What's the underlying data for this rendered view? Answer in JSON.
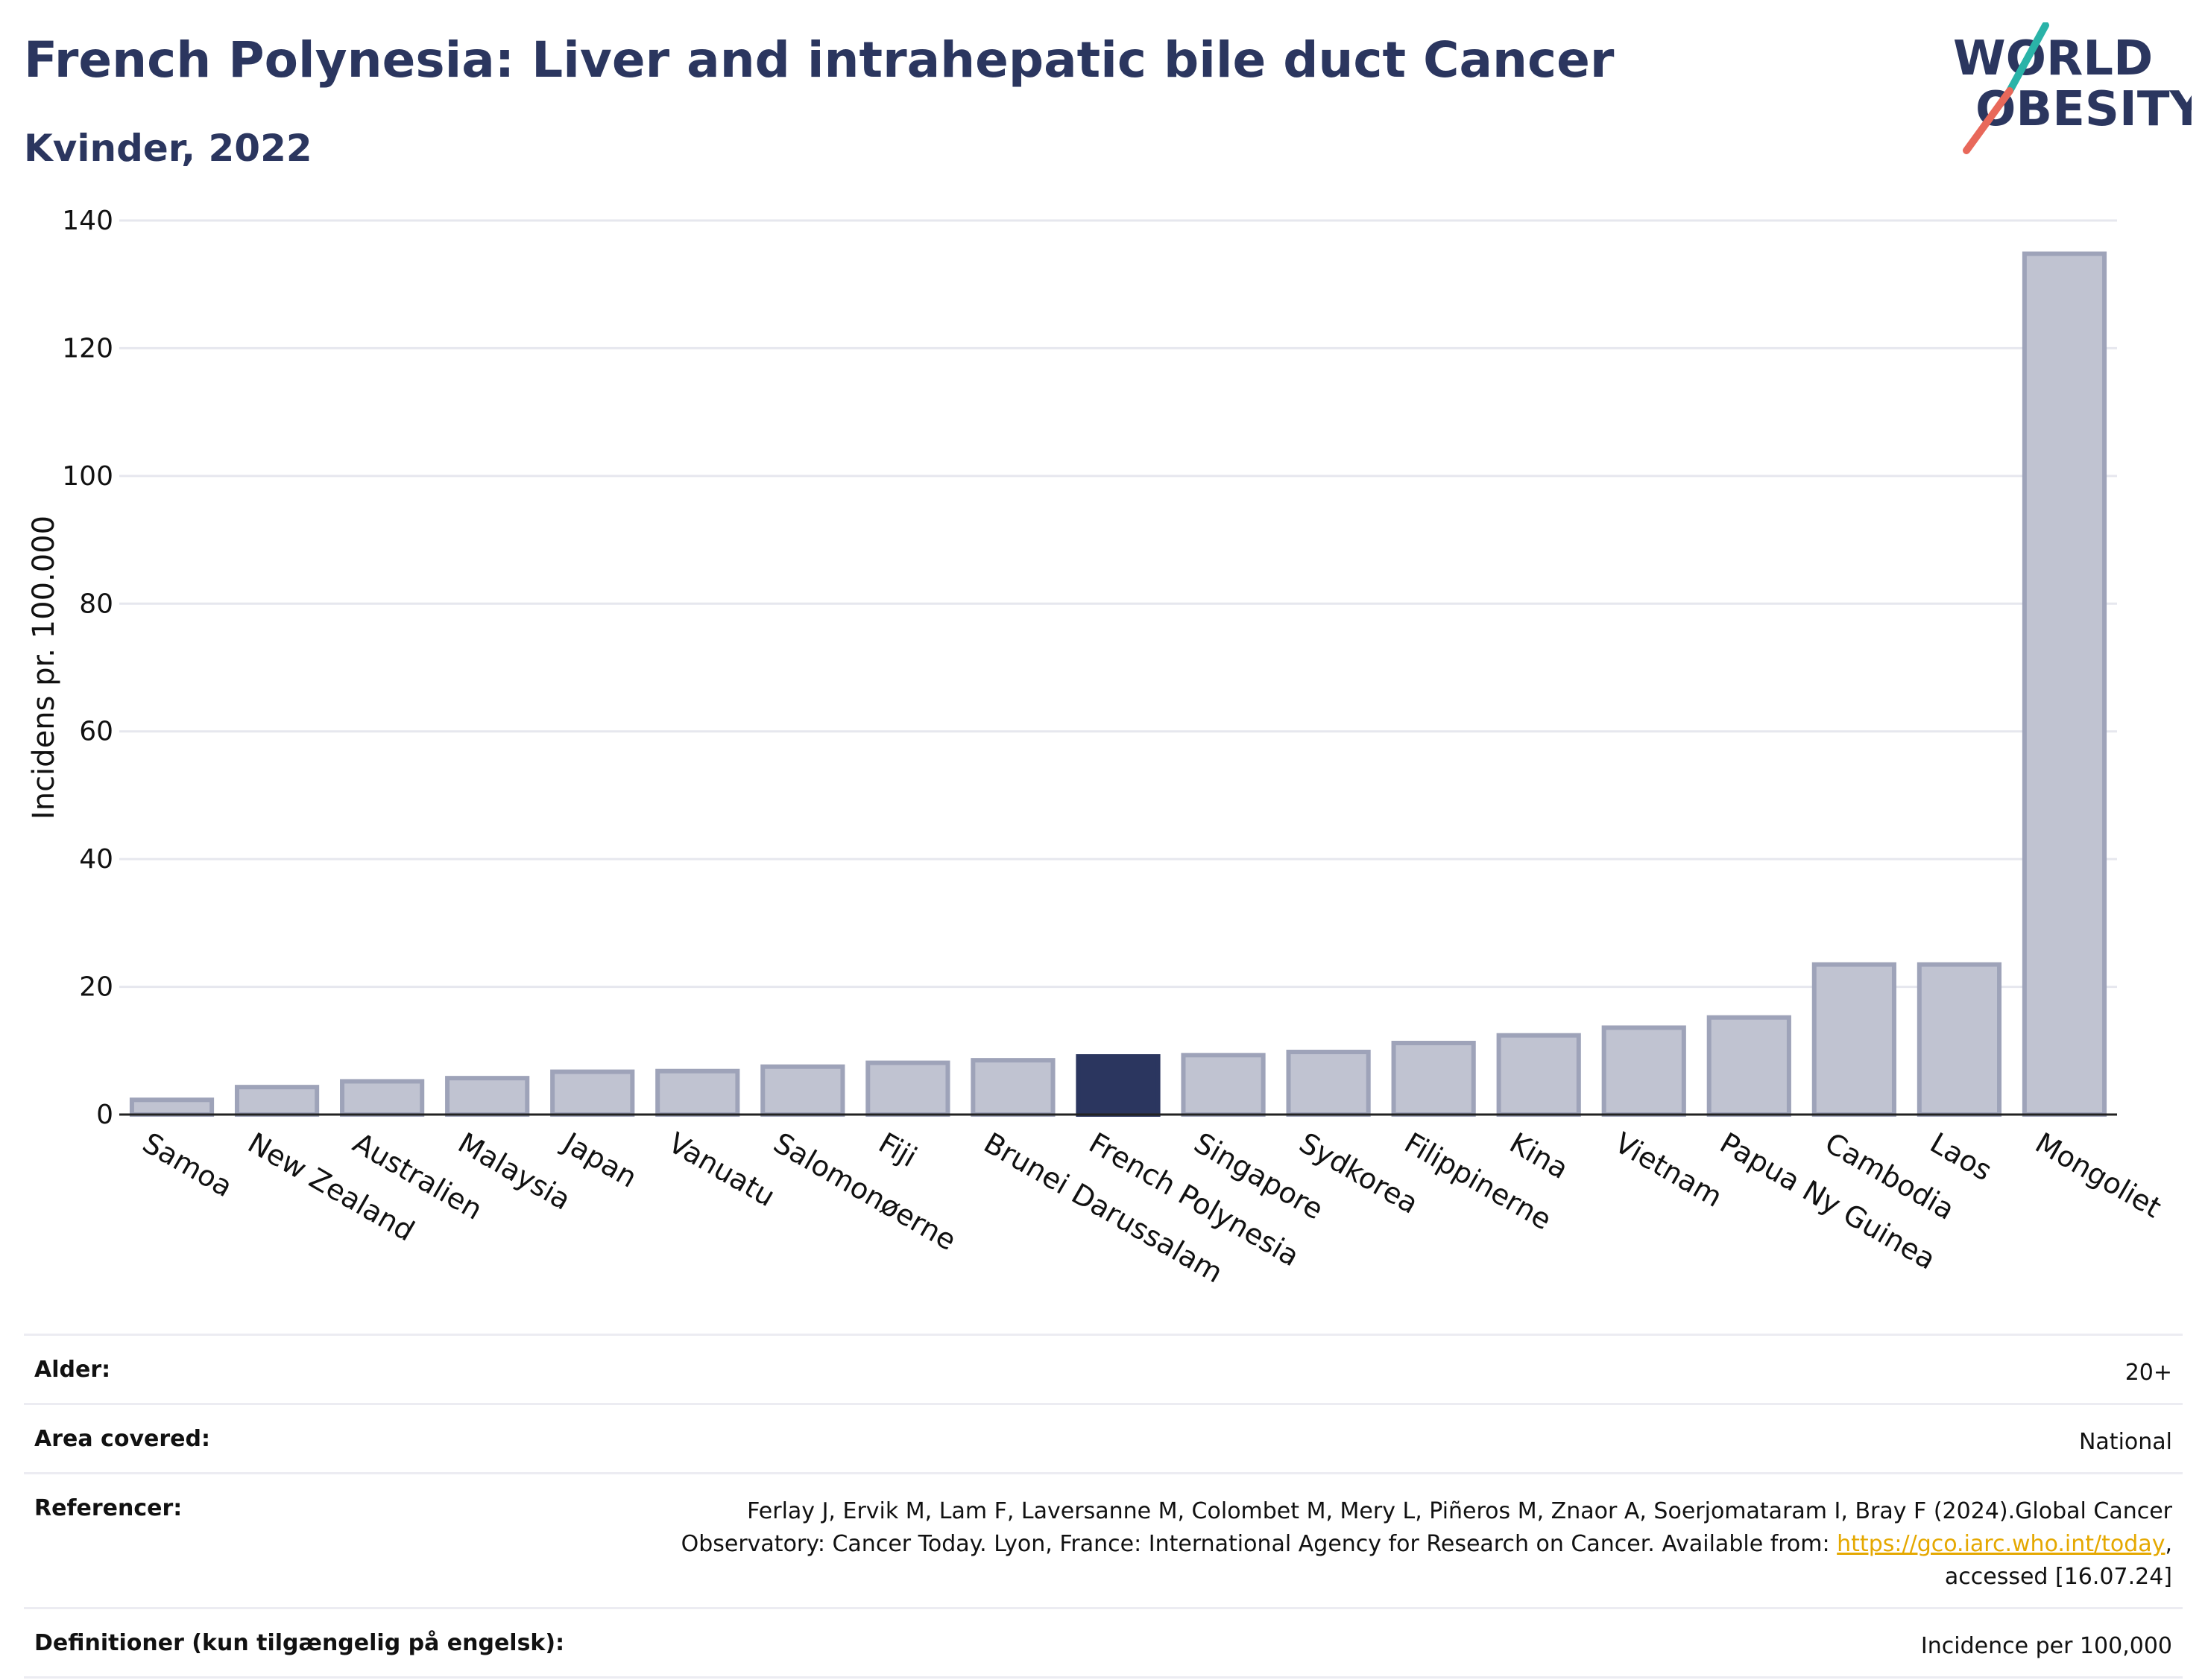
{
  "title": "French Polynesia: Liver and intrahepatic bile duct Cancer",
  "subtitle": "Kvinder, 2022",
  "logo": {
    "line1": "WORLD",
    "line2": "OBESITY",
    "accent_colors": [
      "#2ab3a8",
      "#e8685a"
    ]
  },
  "colors": {
    "bar": "#c0c3d1",
    "bar_stroke": "#9ea3b9",
    "highlight": "#2b365f",
    "text": "#2b365f",
    "grid": "#e6e7ee",
    "link": "#e5a800"
  },
  "chart_data": {
    "type": "bar",
    "title": "French Polynesia: Liver and intrahepatic bile duct Cancer",
    "subtitle": "Kvinder, 2022",
    "xlabel": "",
    "ylabel": "Incidens pr. 100.000",
    "ylim": [
      0,
      140
    ],
    "yticks": [
      0,
      20,
      40,
      60,
      80,
      100,
      120,
      140
    ],
    "grid": true,
    "highlight": "French Polynesia",
    "categories": [
      "Samoa",
      "New Zealand",
      "Australien",
      "Malaysia",
      "Japan",
      "Vanuatu",
      "Salomonøerne",
      "Fiji",
      "Brunei Darussalam",
      "French Polynesia",
      "Singapore",
      "Sydkorea",
      "Filippinerne",
      "Kina",
      "Vietnam",
      "Papua Ny Guinea",
      "Cambodia",
      "Laos",
      "Mongoliet"
    ],
    "values": [
      2.3,
      4.3,
      5.2,
      5.7,
      6.7,
      6.8,
      7.5,
      8.1,
      8.5,
      9.1,
      9.3,
      9.8,
      11.2,
      12.4,
      13.6,
      15.2,
      23.5,
      23.5,
      134.8
    ]
  },
  "info": [
    {
      "label": "Alder:",
      "value": "20+"
    },
    {
      "label": "Area covered:",
      "value": "National"
    },
    {
      "label": "Referencer:",
      "value_before": "Ferlay J, Ervik M, Lam F, Laversanne M, Colombet M, Mery L, Piñeros M, Znaor A, Soerjomataram I, Bray F (2024).Global Cancer Observatory: Cancer Today. Lyon, France: International Agency for Research on Cancer. Available from: ",
      "link": "https://gco.iarc.who.int/today",
      "value_after": ", accessed [16.07.24]"
    },
    {
      "label": "Definitioner (kun tilgængelig på engelsk):",
      "value": "Incidence per 100,000"
    }
  ]
}
